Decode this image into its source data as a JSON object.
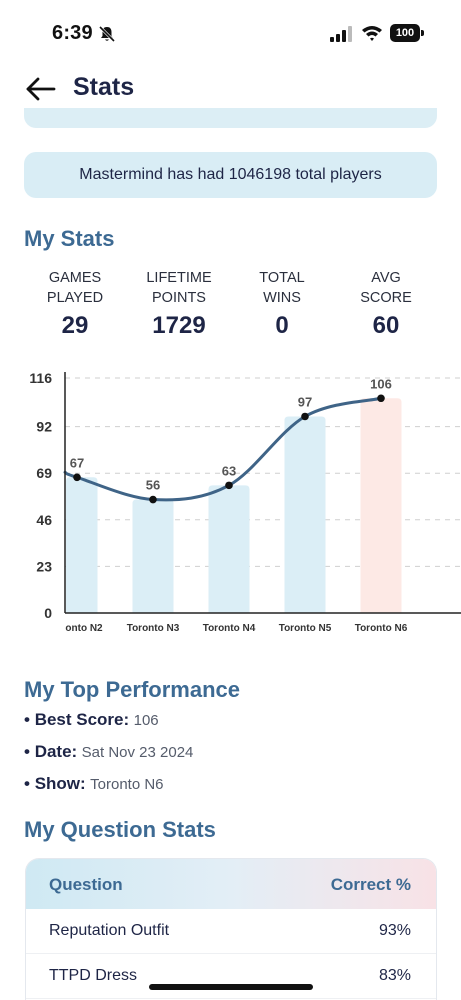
{
  "status_bar": {
    "time": "6:39",
    "battery": "100",
    "icons": [
      "bell-slash-icon",
      "signal-icon",
      "wifi-icon",
      "battery-icon"
    ]
  },
  "header": {
    "title": "Stats",
    "back_icon": "arrow-left-icon"
  },
  "banner": {
    "text": "Mastermind has had 1046198 total players"
  },
  "my_stats": {
    "title": "My Stats",
    "items": [
      {
        "label_line1": "GAMES",
        "label_line2": "PLAYED",
        "value": "29"
      },
      {
        "label_line1": "LIFETIME",
        "label_line2": "POINTS",
        "value": "1729"
      },
      {
        "label_line1": "TOTAL",
        "label_line2": "WINS",
        "value": "0"
      },
      {
        "label_line1": "AVG",
        "label_line2": "SCORE",
        "value": "60"
      }
    ]
  },
  "chart_data": {
    "type": "bar",
    "categories": [
      "onto N2",
      "Toronto N3",
      "Toronto N4",
      "Toronto N5",
      "Toronto N6"
    ],
    "values": [
      67,
      56,
      63,
      97,
      106
    ],
    "data_labels": [
      "67",
      "56",
      "63",
      "97",
      "106"
    ],
    "highlight_index": 4,
    "yticks": [
      "0",
      "23",
      "46",
      "69",
      "92",
      "116"
    ],
    "ylim": [
      0,
      116
    ],
    "grid": true,
    "line_overlay": true,
    "colors": {
      "bar": "#dbeef6",
      "highlight_bar": "#fde9e5",
      "line": "#3f6487",
      "point": "#111111",
      "grid": "#cfcfcf"
    }
  },
  "top_performance": {
    "title": "My Top Performance",
    "items": [
      {
        "key": "Best Score:",
        "value": "106"
      },
      {
        "key": "Date:",
        "value": "Sat Nov 23 2024"
      },
      {
        "key": "Show:",
        "value": "Toronto N6"
      }
    ]
  },
  "question_stats": {
    "title": "My Question Stats",
    "header": {
      "question": "Question",
      "correct": "Correct %"
    },
    "rows": [
      {
        "question": "Reputation Outfit",
        "correct": "93%"
      },
      {
        "question": "TTPD Dress",
        "correct": "83%"
      }
    ]
  },
  "colors": {
    "accent": "#3d6a93",
    "banner_bg": "#d9edf5",
    "title_text": "#1e2546"
  }
}
